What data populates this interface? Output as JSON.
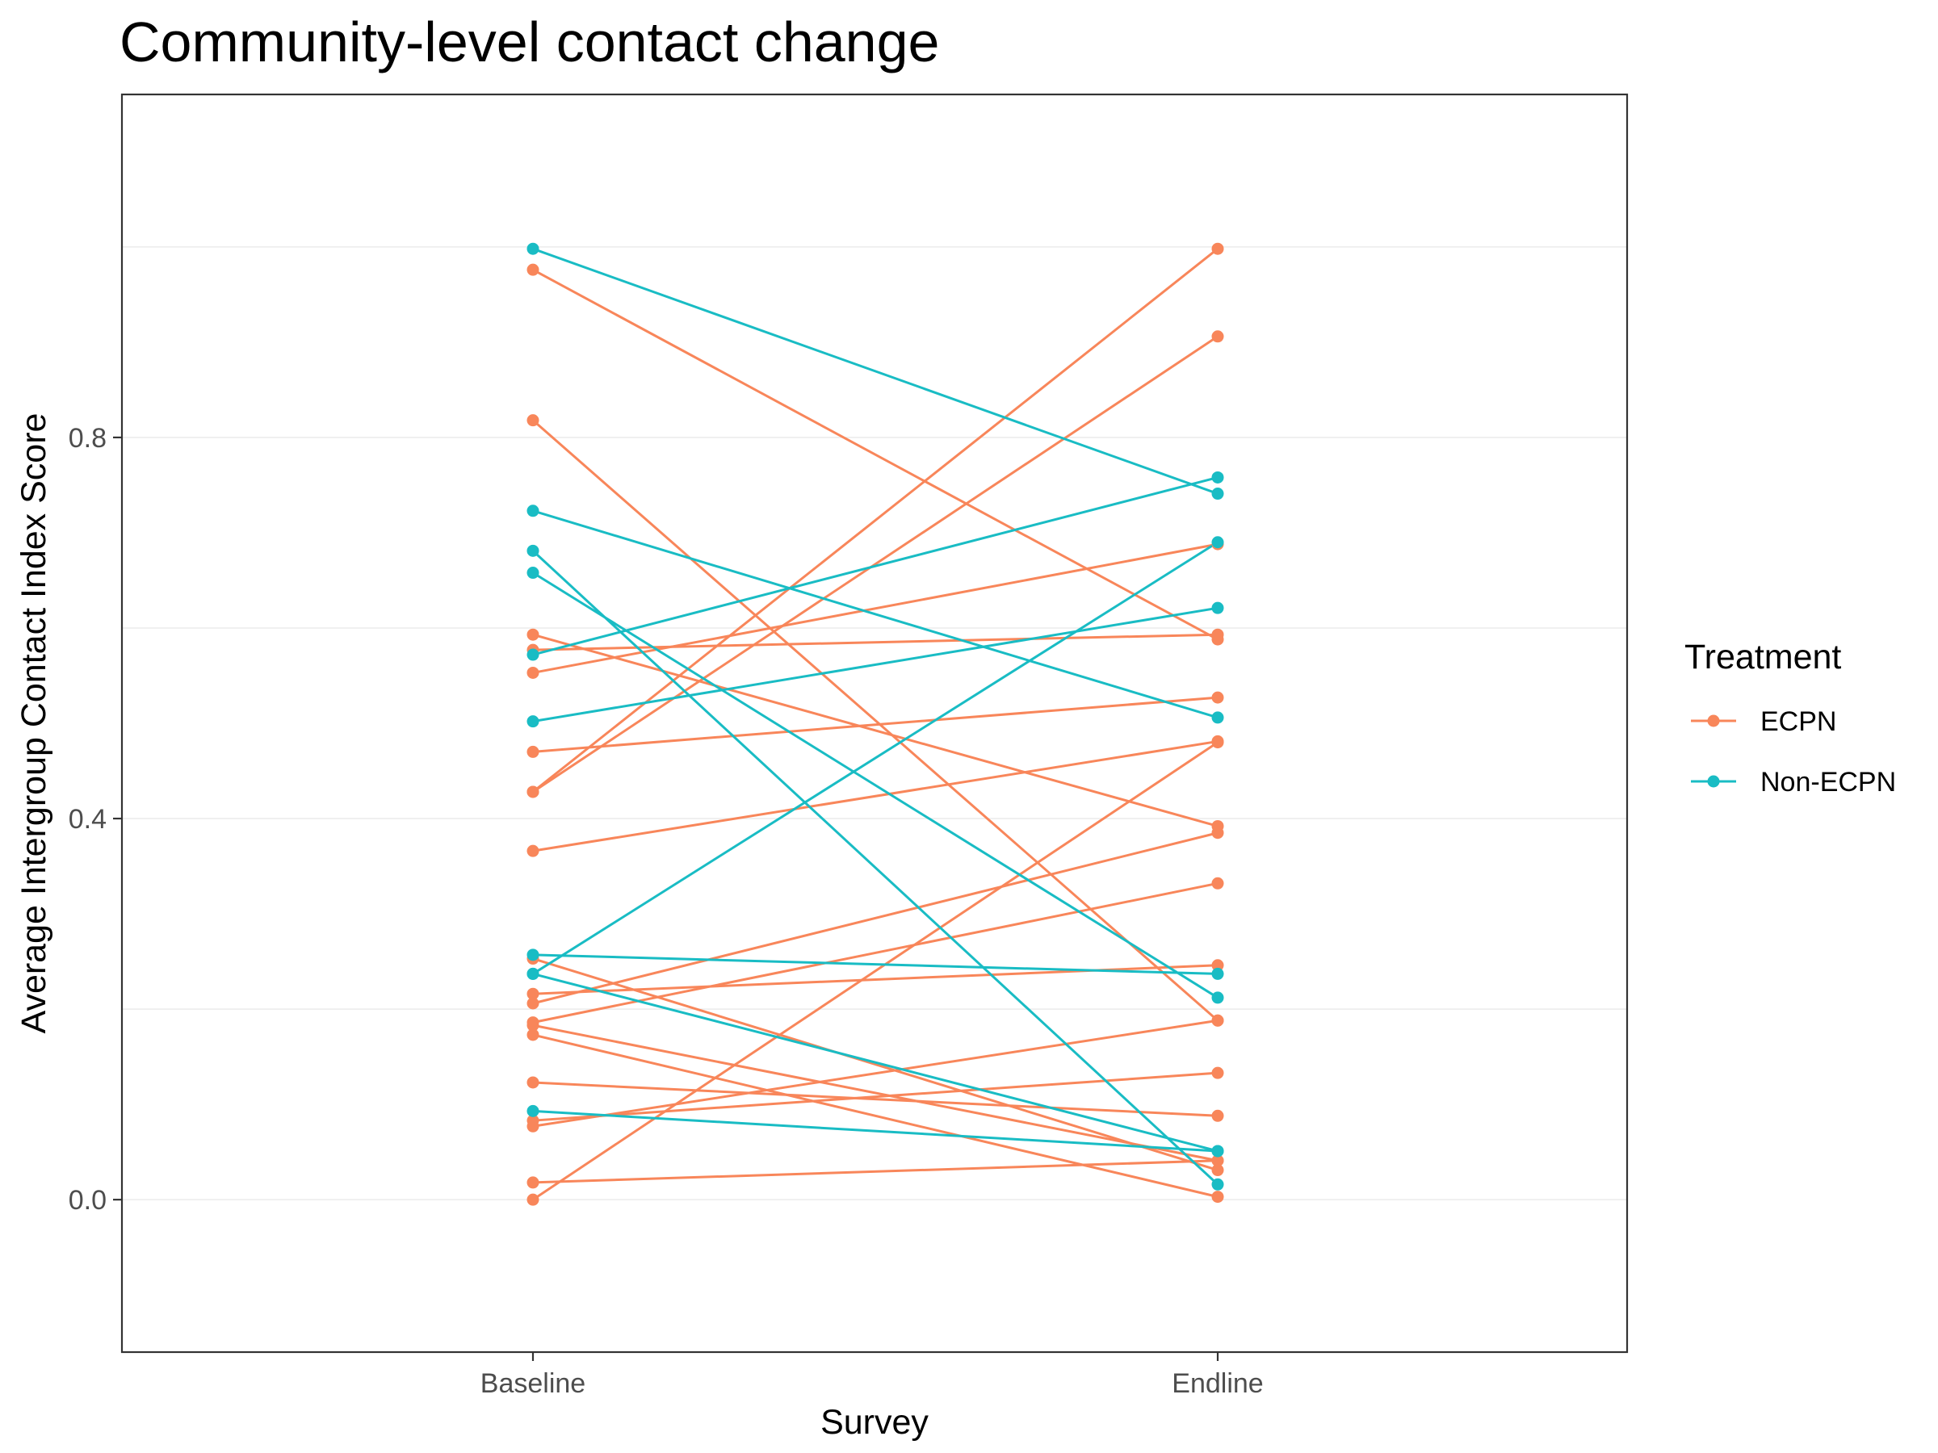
{
  "chart_data": {
    "type": "line",
    "title": "Community-level contact change",
    "xlabel": "Survey",
    "ylabel": "Average Intergroup Contact Index Score",
    "categories": [
      "Baseline",
      "Endline"
    ],
    "ylim": [
      -0.16,
      1.16
    ],
    "yticks": [
      0.0,
      0.4,
      0.8
    ],
    "yticks_labels": [
      "0.0",
      "0.4",
      "0.8"
    ],
    "grid": "horizontal",
    "legend": {
      "title": "Treatment",
      "placement": "right",
      "entries": [
        "ECPN",
        "Non-ECPN"
      ]
    },
    "colors": {
      "ECPN": "#f8865a",
      "Non-ECPN": "#19bcc4"
    },
    "series": [
      {
        "group": "ECPN",
        "values": [
          0.976,
          0.588
        ]
      },
      {
        "group": "ECPN",
        "values": [
          0.818,
          0.188
        ]
      },
      {
        "group": "ECPN",
        "values": [
          0.593,
          0.392
        ]
      },
      {
        "group": "ECPN",
        "values": [
          0.577,
          0.593
        ]
      },
      {
        "group": "ECPN",
        "values": [
          0.553,
          0.688
        ]
      },
      {
        "group": "ECPN",
        "values": [
          0.47,
          0.527
        ]
      },
      {
        "group": "ECPN",
        "values": [
          0.428,
          0.998
        ]
      },
      {
        "group": "ECPN",
        "values": [
          0.428,
          0.906
        ]
      },
      {
        "group": "ECPN",
        "values": [
          0.366,
          0.481
        ]
      },
      {
        "group": "ECPN",
        "values": [
          0.253,
          0.031
        ]
      },
      {
        "group": "ECPN",
        "values": [
          0.216,
          0.246
        ]
      },
      {
        "group": "ECPN",
        "values": [
          0.206,
          0.385
        ]
      },
      {
        "group": "ECPN",
        "values": [
          0.186,
          0.332
        ]
      },
      {
        "group": "ECPN",
        "values": [
          0.183,
          0.041
        ]
      },
      {
        "group": "ECPN",
        "values": [
          0.173,
          0.003
        ]
      },
      {
        "group": "ECPN",
        "values": [
          0.123,
          0.088
        ]
      },
      {
        "group": "ECPN",
        "values": [
          0.083,
          0.133
        ]
      },
      {
        "group": "ECPN",
        "values": [
          0.077,
          0.188
        ]
      },
      {
        "group": "ECPN",
        "values": [
          0.018,
          0.041
        ]
      },
      {
        "group": "ECPN",
        "values": [
          0.0,
          0.48
        ]
      },
      {
        "group": "Non-ECPN",
        "values": [
          0.998,
          0.741
        ]
      },
      {
        "group": "Non-ECPN",
        "values": [
          0.723,
          0.506
        ]
      },
      {
        "group": "Non-ECPN",
        "values": [
          0.681,
          0.016
        ]
      },
      {
        "group": "Non-ECPN",
        "values": [
          0.658,
          0.212
        ]
      },
      {
        "group": "Non-ECPN",
        "values": [
          0.572,
          0.758
        ]
      },
      {
        "group": "Non-ECPN",
        "values": [
          0.502,
          0.621
        ]
      },
      {
        "group": "Non-ECPN",
        "values": [
          0.257,
          0.237
        ]
      },
      {
        "group": "Non-ECPN",
        "values": [
          0.237,
          0.69
        ]
      },
      {
        "group": "Non-ECPN",
        "values": [
          0.237,
          0.051
        ]
      },
      {
        "group": "Non-ECPN",
        "values": [
          0.093,
          0.051
        ]
      }
    ]
  }
}
